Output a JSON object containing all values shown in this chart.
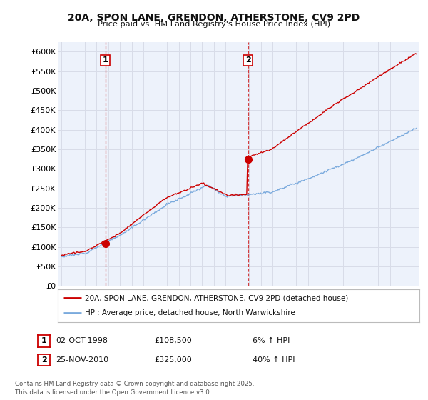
{
  "title_line1": "20A, SPON LANE, GRENDON, ATHERSTONE, CV9 2PD",
  "title_line2": "Price paid vs. HM Land Registry's House Price Index (HPI)",
  "ylim": [
    0,
    625000
  ],
  "yticks": [
    0,
    50000,
    100000,
    150000,
    200000,
    250000,
    300000,
    350000,
    400000,
    450000,
    500000,
    550000,
    600000
  ],
  "ytick_labels": [
    "£0",
    "£50K",
    "£100K",
    "£150K",
    "£200K",
    "£250K",
    "£300K",
    "£350K",
    "£400K",
    "£450K",
    "£500K",
    "£550K",
    "£600K"
  ],
  "xlim_start": 1994.7,
  "xlim_end": 2025.5,
  "sale1_year": 1998.75,
  "sale1_price": 108500,
  "sale1_label": "1",
  "sale1_date": "02-OCT-1998",
  "sale1_pct": "6% ↑ HPI",
  "sale2_year": 2010.9,
  "sale2_price": 325000,
  "sale2_label": "2",
  "sale2_date": "25-NOV-2010",
  "sale2_pct": "40% ↑ HPI",
  "red_line_color": "#cc0000",
  "blue_line_color": "#7aaadd",
  "grid_color": "#d8dce8",
  "bg_color": "#edf2fb",
  "legend_label_red": "20A, SPON LANE, GRENDON, ATHERSTONE, CV9 2PD (detached house)",
  "legend_label_blue": "HPI: Average price, detached house, North Warwickshire",
  "footer": "Contains HM Land Registry data © Crown copyright and database right 2025.\nThis data is licensed under the Open Government Licence v3.0.",
  "sale1_price_str": "£108,500",
  "sale2_price_str": "£325,000"
}
